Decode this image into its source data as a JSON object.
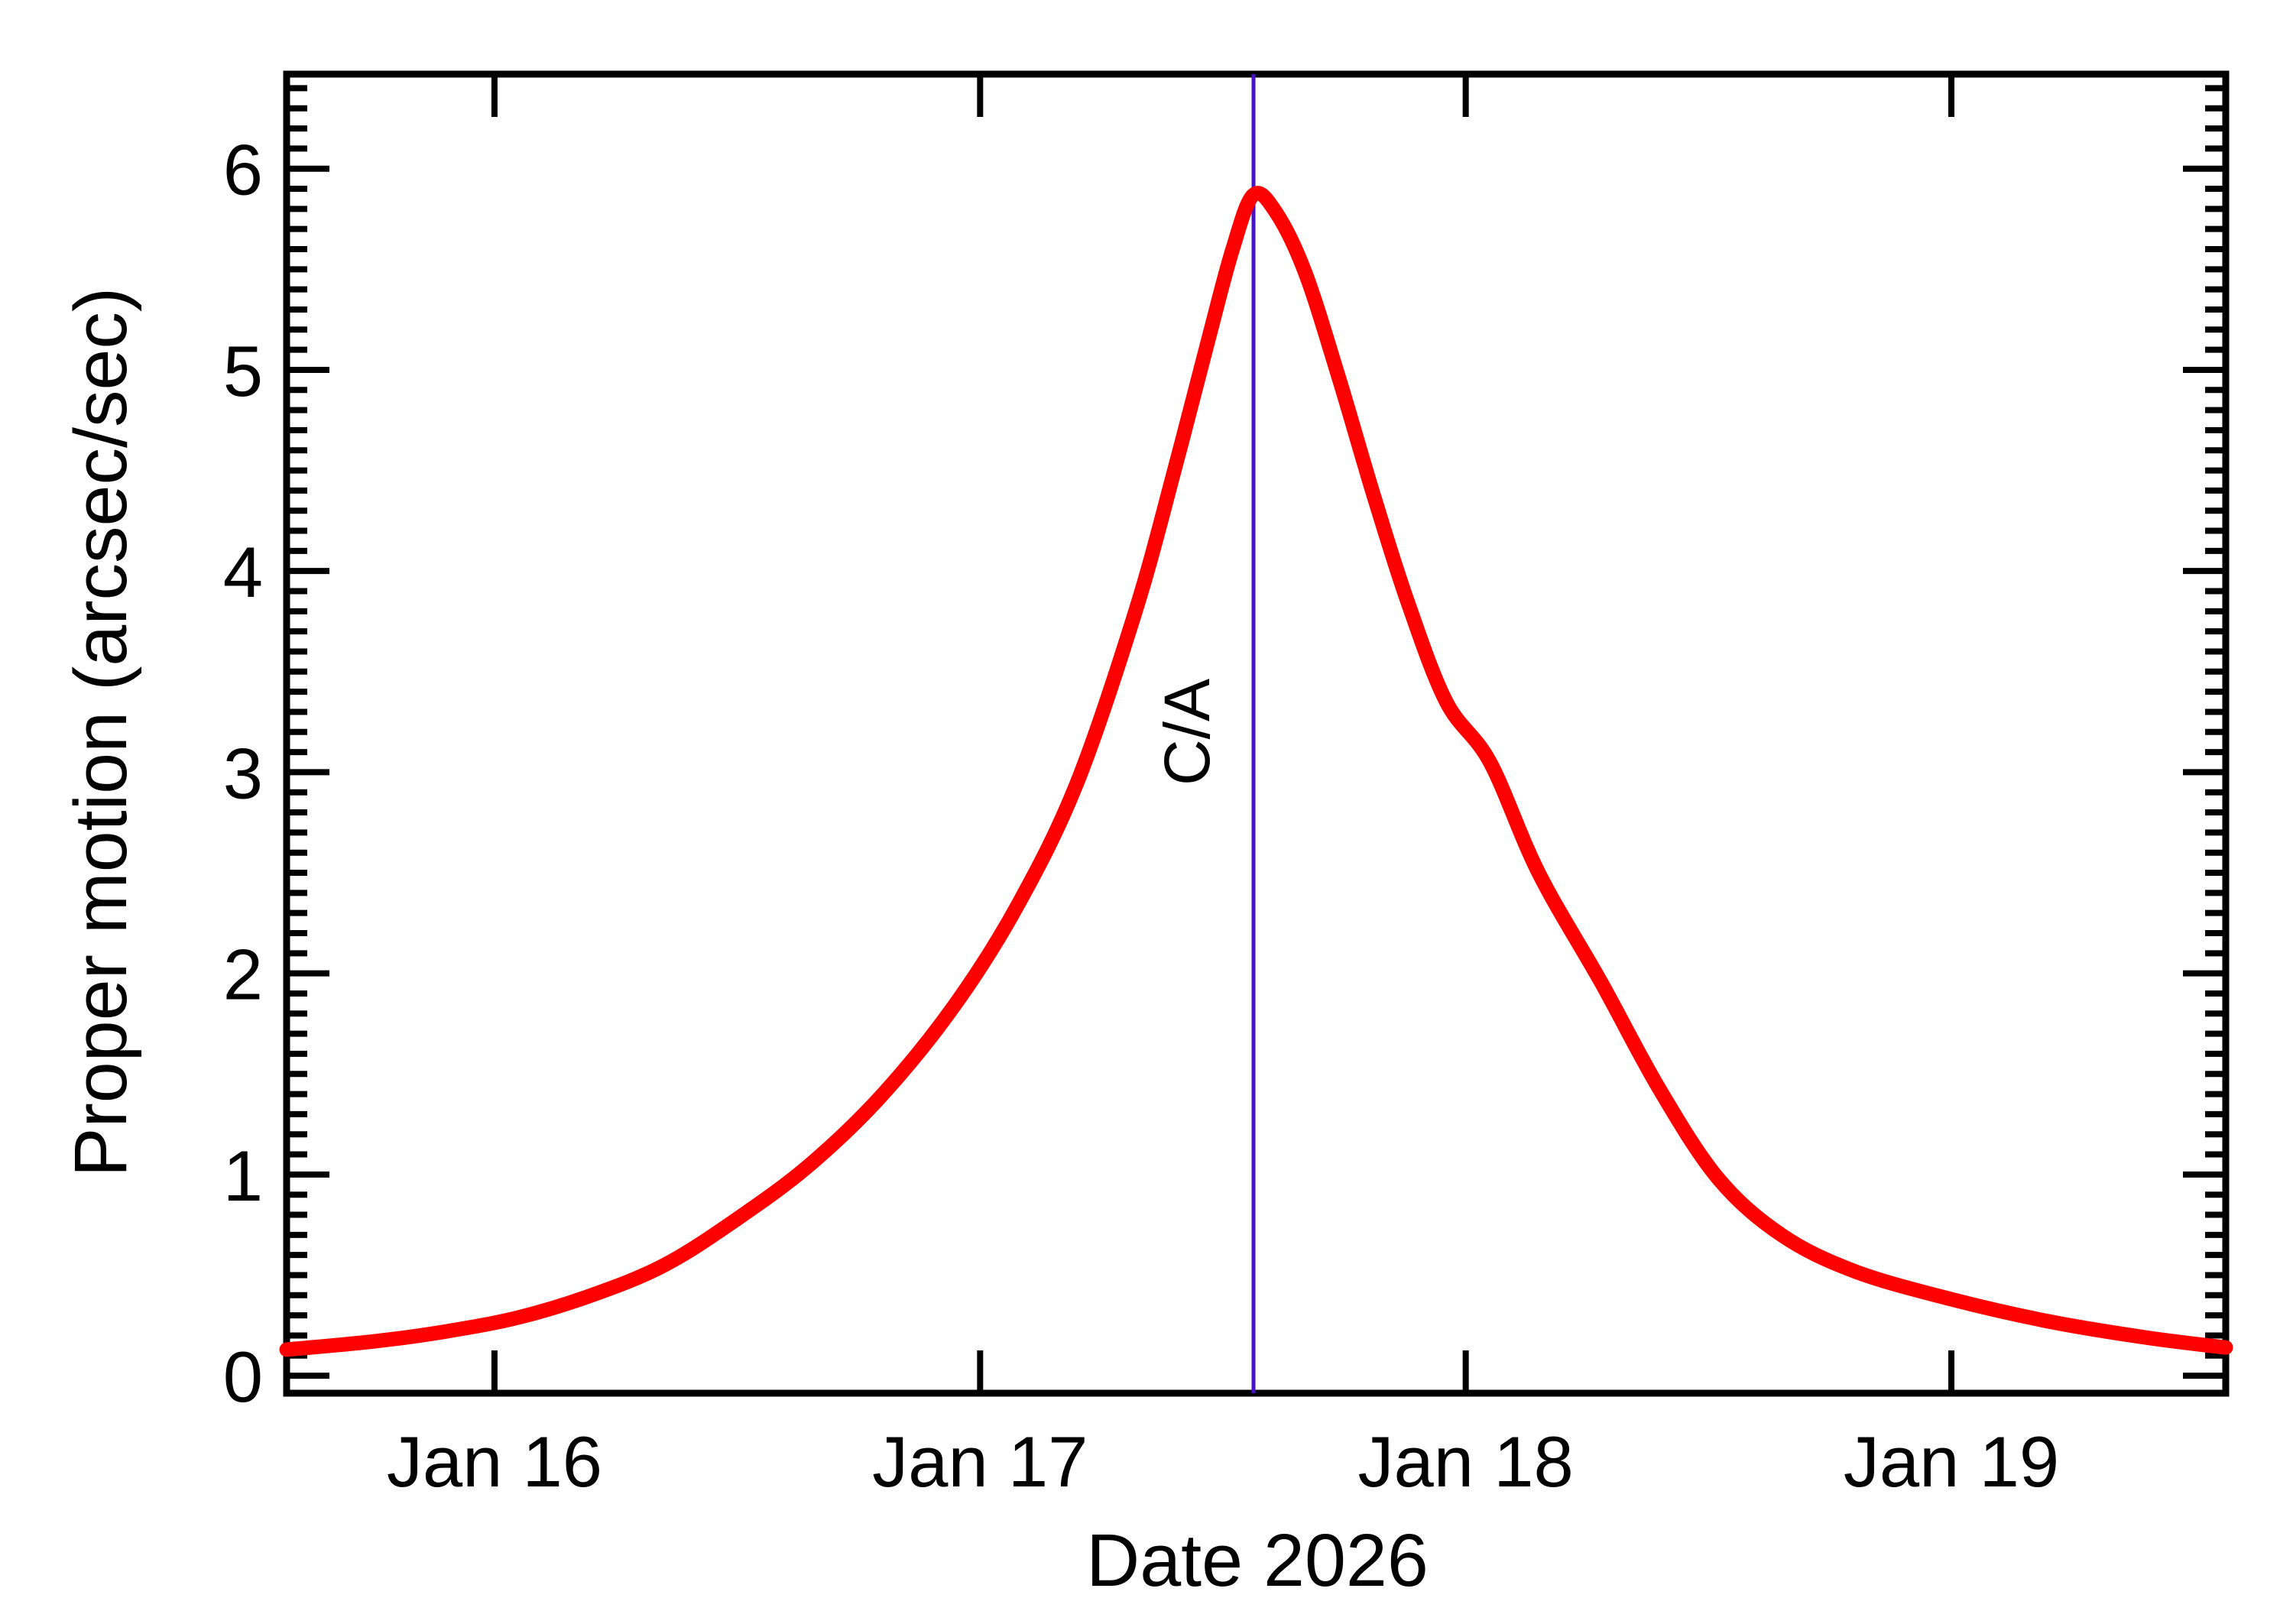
{
  "figure": {
    "background": "#ffffff",
    "frame_color": "#000000"
  },
  "chart_data": {
    "type": "line",
    "title": "",
    "xlabel": "Date 2026",
    "ylabel": "Proper motion (arcsec/sec)",
    "grid": false,
    "legend": "none",
    "x_axis": {
      "unit": "day of January 2026",
      "range": [
        15.572,
        19.565
      ],
      "major_tick_values": [
        16,
        17,
        18,
        19
      ],
      "tick_labels": [
        "Jan 16",
        "Jan 17",
        "Jan 18",
        "Jan 19"
      ],
      "minor_ticks": false,
      "ticks_mirrored_top": true
    },
    "y_axis": {
      "range": [
        -0.087,
        6.47
      ],
      "major_tick_values": [
        0,
        1,
        2,
        3,
        4,
        5,
        6
      ],
      "tick_labels": [
        "0",
        "1",
        "2",
        "3",
        "4",
        "5",
        "6"
      ],
      "minor_tick_step": 0.1,
      "ticks_mirrored_right": true
    },
    "annotation_line": {
      "label": "C/A",
      "x": 17.563,
      "color": "#4612c8",
      "meaning": "closest approach marker"
    },
    "peak": {
      "x": 17.563,
      "value": 5.87
    },
    "series": [
      {
        "name": "proper motion",
        "color": "#ff0000",
        "points": [
          [
            15.572,
            0.13
          ],
          [
            15.75,
            0.17
          ],
          [
            15.9,
            0.22
          ],
          [
            16.05,
            0.29
          ],
          [
            16.2,
            0.4
          ],
          [
            16.35,
            0.55
          ],
          [
            16.5,
            0.78
          ],
          [
            16.65,
            1.05
          ],
          [
            16.8,
            1.4
          ],
          [
            16.95,
            1.85
          ],
          [
            17.08,
            2.35
          ],
          [
            17.2,
            2.95
          ],
          [
            17.32,
            3.8
          ],
          [
            17.4,
            4.5
          ],
          [
            17.47,
            5.15
          ],
          [
            17.52,
            5.6
          ],
          [
            17.563,
            5.87
          ],
          [
            17.61,
            5.78
          ],
          [
            17.67,
            5.48
          ],
          [
            17.74,
            4.95
          ],
          [
            17.81,
            4.38
          ],
          [
            17.88,
            3.85
          ],
          [
            17.96,
            3.35
          ],
          [
            18.05,
            3.05
          ],
          [
            18.15,
            2.5
          ],
          [
            18.28,
            1.95
          ],
          [
            18.4,
            1.42
          ],
          [
            18.52,
            0.98
          ],
          [
            18.65,
            0.7
          ],
          [
            18.8,
            0.52
          ],
          [
            19.0,
            0.38
          ],
          [
            19.2,
            0.27
          ],
          [
            19.4,
            0.19
          ],
          [
            19.565,
            0.14
          ]
        ]
      }
    ]
  }
}
